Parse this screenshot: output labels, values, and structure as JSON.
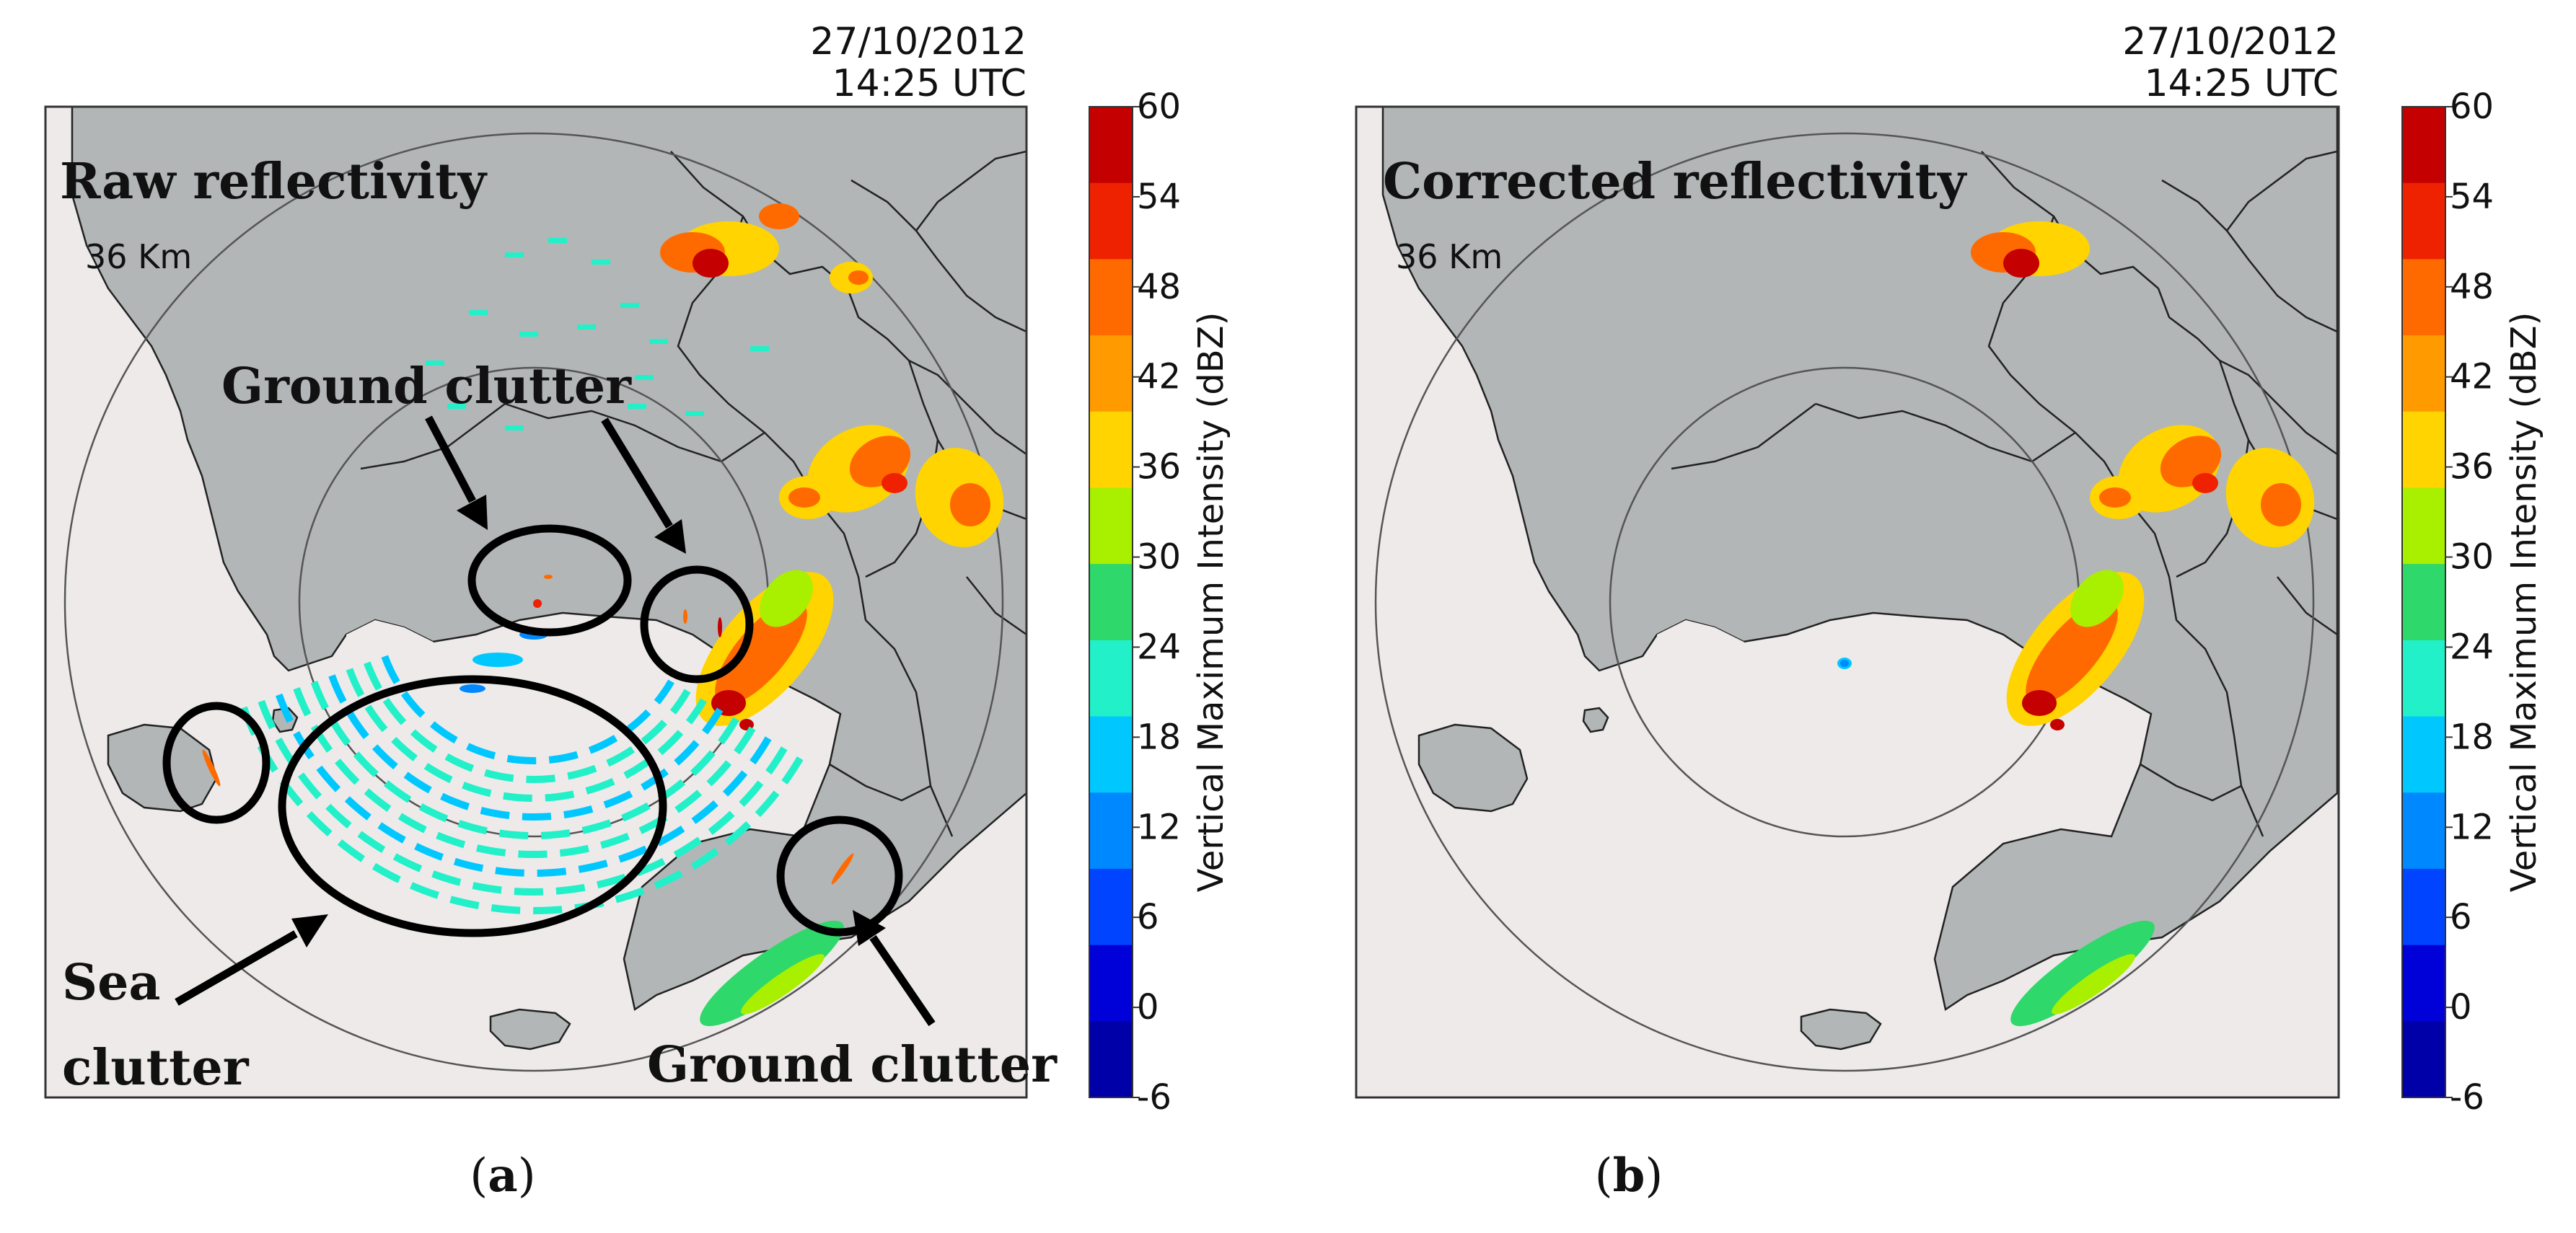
{
  "panels": [
    {
      "id": "a",
      "title": "Raw reflectivity",
      "timestamp_date": "27/10/2012",
      "timestamp_time": "14:25 UTC",
      "range_label": "36 Km",
      "caption_letter": "a",
      "annotations": {
        "ground_clutter_top": "Ground clutter",
        "sea_line1": "Sea",
        "sea_line2": "clutter",
        "ground_clutter_bottom": "Ground clutter"
      }
    },
    {
      "id": "b",
      "title": "Corrected reflectivity",
      "timestamp_date": "27/10/2012",
      "timestamp_time": "14:25 UTC",
      "range_label": "36 Km",
      "caption_letter": "b"
    }
  ],
  "colorbar": {
    "label": "Vertical Maximum Intensity (dBZ)",
    "ticks": [
      "60",
      "54",
      "48",
      "42",
      "36",
      "30",
      "24",
      "18",
      "12",
      "6",
      "0",
      "-6"
    ],
    "colors": [
      "#c40000",
      "#ee2200",
      "#ff6a00",
      "#ff9a00",
      "#ffd400",
      "#a8f000",
      "#2ed86a",
      "#22f0c8",
      "#00c8ff",
      "#0088ff",
      "#0044ff",
      "#0000d8",
      "#0000a8"
    ]
  },
  "style": {
    "sea_color": "#eeeaea",
    "land_color": "#b2b6b6",
    "border_color": "#222222",
    "ring_color": "#555555"
  }
}
